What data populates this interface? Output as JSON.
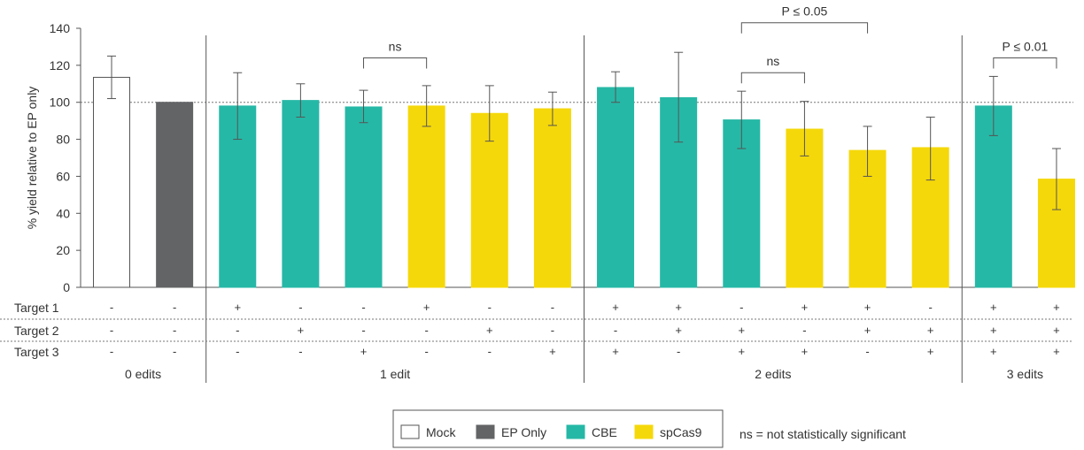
{
  "chart_data": {
    "type": "bar",
    "ylabel": "% yield relative to EP only",
    "ylim": [
      0,
      140
    ],
    "yticks": [
      0,
      20,
      40,
      60,
      80,
      100,
      120,
      140
    ],
    "reference_line": 100,
    "series_colors": {
      "Mock": "#ffffff",
      "EP Only": "#636466",
      "CBE": "#26b8a6",
      "spCas9": "#f5d80a"
    },
    "bars": [
      {
        "series": "Mock",
        "value": 113.5,
        "err_low": 102,
        "err_high": 125,
        "targets": [
          "-",
          "-",
          "-"
        ]
      },
      {
        "series": "EP Only",
        "value": 100,
        "err_low": null,
        "err_high": null,
        "targets": [
          "-",
          "-",
          "-"
        ]
      },
      {
        "series": "CBE",
        "value": 98,
        "err_low": 80,
        "err_high": 116,
        "targets": [
          "+",
          "-",
          "-"
        ]
      },
      {
        "series": "CBE",
        "value": 101,
        "err_low": 92,
        "err_high": 110,
        "targets": [
          "-",
          "+",
          "-"
        ]
      },
      {
        "series": "CBE",
        "value": 97.5,
        "err_low": 89,
        "err_high": 106.5,
        "targets": [
          "-",
          "-",
          "+"
        ]
      },
      {
        "series": "spCas9",
        "value": 98,
        "err_low": 87,
        "err_high": 109,
        "targets": [
          "+",
          "-",
          "-"
        ]
      },
      {
        "series": "spCas9",
        "value": 94,
        "err_low": 79,
        "err_high": 109,
        "targets": [
          "-",
          "+",
          "-"
        ]
      },
      {
        "series": "spCas9",
        "value": 96.5,
        "err_low": 87.5,
        "err_high": 105.5,
        "targets": [
          "-",
          "-",
          "+"
        ]
      },
      {
        "series": "CBE",
        "value": 108,
        "err_low": 100,
        "err_high": 116.5,
        "targets": [
          "+",
          "-",
          "+"
        ]
      },
      {
        "series": "CBE",
        "value": 102.5,
        "err_low": 78.5,
        "err_high": 127,
        "targets": [
          "+",
          "+",
          "-"
        ]
      },
      {
        "series": "CBE",
        "value": 90.5,
        "err_low": 75,
        "err_high": 106,
        "targets": [
          "-",
          "+",
          "+"
        ]
      },
      {
        "series": "spCas9",
        "value": 85.5,
        "err_low": 71,
        "err_high": 100.5,
        "targets": [
          "+",
          "-",
          "+"
        ]
      },
      {
        "series": "spCas9",
        "value": 74,
        "err_low": 60,
        "err_high": 87,
        "targets": [
          "+",
          "+",
          "-"
        ]
      },
      {
        "series": "spCas9",
        "value": 75.5,
        "err_low": 58,
        "err_high": 92,
        "targets": [
          "-",
          "+",
          "+"
        ]
      },
      {
        "series": "CBE",
        "value": 98,
        "err_low": 82,
        "err_high": 114,
        "targets": [
          "+",
          "+",
          "+"
        ]
      },
      {
        "series": "spCas9",
        "value": 58.5,
        "err_low": 42,
        "err_high": 75,
        "targets": [
          "+",
          "+",
          "+"
        ]
      }
    ],
    "table_rows": [
      "Target 1",
      "Target 2",
      "Target 3"
    ],
    "groups": [
      {
        "label": "0 edits",
        "start": 0,
        "end": 1
      },
      {
        "label": "1 edit",
        "start": 2,
        "end": 7
      },
      {
        "label": "2 edits",
        "start": 8,
        "end": 13
      },
      {
        "label": "3 edits",
        "start": 14,
        "end": 15
      }
    ],
    "annotations": [
      {
        "label": "ns",
        "from": 4,
        "to": 5,
        "level": 124
      },
      {
        "label": "ns",
        "from": 10,
        "to": 11,
        "level": 116
      },
      {
        "label": "P ≤ 0.05",
        "from": 10,
        "to": 12,
        "level": 143
      },
      {
        "label": "P ≤ 0.01",
        "from": 14,
        "to": 15,
        "level": 124
      }
    ],
    "legend": [
      "Mock",
      "EP Only",
      "CBE",
      "spCas9"
    ],
    "legend_position": "bottom-center",
    "note": "ns = not statistically significant"
  }
}
